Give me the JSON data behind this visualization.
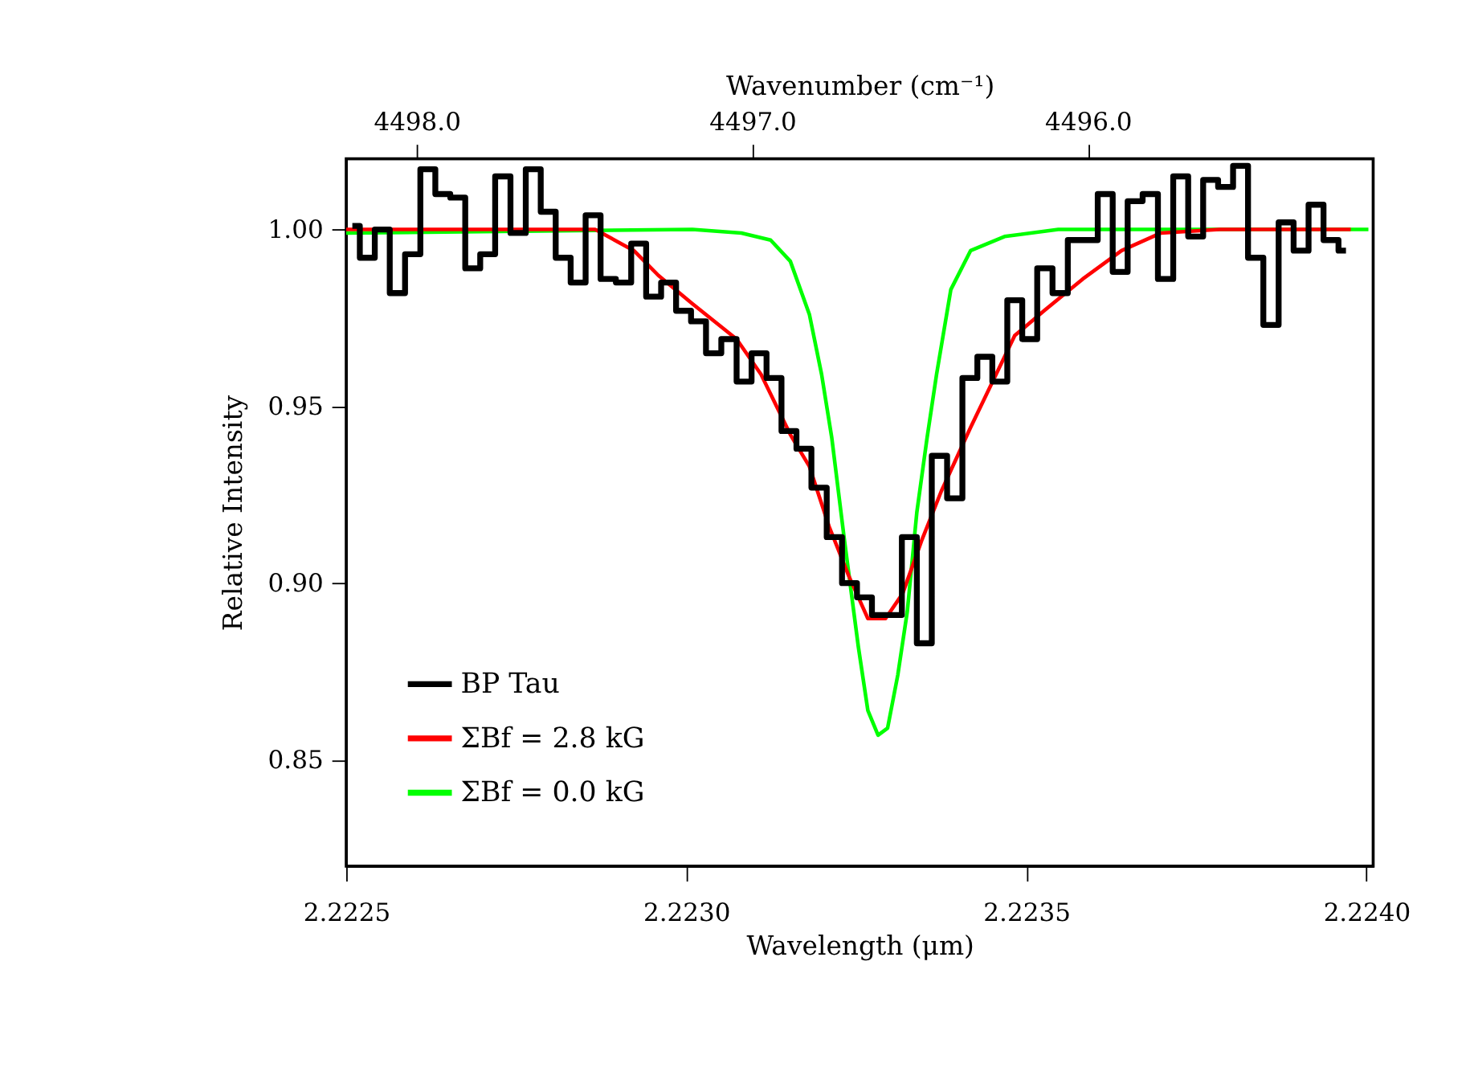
{
  "chart_data": {
    "type": "line",
    "xlabel": "Wavelength (μm)",
    "ylabel": "Relative Intensity",
    "x2label": "Wavenumber (cm⁻¹)",
    "xlim": [
      2.2225,
      2.22401
    ],
    "xticks": [
      {
        "value": 2.2225,
        "label": "2.2225"
      },
      {
        "value": 2.223,
        "label": "2.2230"
      },
      {
        "value": 2.2235,
        "label": "2.2235"
      },
      {
        "value": 2.224,
        "label": "2.2240"
      }
    ],
    "x2lim": [
      4498.21,
      4495.15
    ],
    "x2ticks": [
      {
        "value": 4498,
        "label": "4498.0"
      },
      {
        "value": 4497,
        "label": "4497.0"
      },
      {
        "value": 4496,
        "label": "4496.0"
      }
    ],
    "ylim": [
      0.82,
      1.02
    ],
    "yticks": [
      {
        "value": 0.85,
        "label": "0.85"
      },
      {
        "value": 0.9,
        "label": "0.90"
      },
      {
        "value": 0.95,
        "label": "0.95"
      },
      {
        "value": 1.0,
        "label": "1.00"
      }
    ],
    "grid": false,
    "legend": "bottom left",
    "series": [
      {
        "name": "BP Tau",
        "type": "step",
        "color": "#000000",
        "x": [
          2.222509,
          2.222531,
          2.222553,
          2.222575,
          2.222598,
          2.22262,
          2.222642,
          2.222664,
          2.222686,
          2.222708,
          2.22273,
          2.222753,
          2.222775,
          2.222797,
          2.222819,
          2.222841,
          2.222863,
          2.222885,
          2.222908,
          2.22293,
          2.222952,
          2.222974,
          2.222996,
          2.223018,
          2.22304,
          2.223063,
          2.223085,
          2.223107,
          2.223129,
          2.223151,
          2.223173,
          2.223195,
          2.223218,
          2.22324,
          2.223262,
          2.223284,
          2.223306,
          2.223328,
          2.22335,
          2.223372,
          2.223395,
          2.223417,
          2.223439,
          2.223461,
          2.223483,
          2.223505,
          2.223527,
          2.22355,
          2.223572,
          2.223594,
          2.223616,
          2.223638,
          2.22366,
          2.223682,
          2.223705,
          2.223727,
          2.223749,
          2.223771,
          2.223793,
          2.223815,
          2.223837,
          2.22386,
          2.223882,
          2.223904,
          2.223926,
          2.223948,
          2.22397
        ],
        "values": [
          1.001,
          0.992,
          1.0,
          0.982,
          0.993,
          1.017,
          1.01,
          1.009,
          0.989,
          0.993,
          1.015,
          0.999,
          1.017,
          1.005,
          0.992,
          0.985,
          1.004,
          0.986,
          0.985,
          0.996,
          0.981,
          0.985,
          0.977,
          0.974,
          0.965,
          0.969,
          0.957,
          0.965,
          0.958,
          0.943,
          0.938,
          0.927,
          0.913,
          0.9,
          0.896,
          0.891,
          0.891,
          0.913,
          0.883,
          0.936,
          0.924,
          0.958,
          0.964,
          0.957,
          0.98,
          0.969,
          0.989,
          0.982,
          0.997,
          0.997,
          1.01,
          0.988,
          1.008,
          1.01,
          0.986,
          1.015,
          0.998,
          1.014,
          1.012,
          1.018,
          0.992,
          0.973,
          1.002,
          0.994,
          1.007,
          0.997,
          0.994
        ]
      },
      {
        "name": "ΣBf = 2.8 kG",
        "color": "#ff0000",
        "x": [
          2.2225,
          2.222866,
          2.222923,
          2.222959,
          2.223009,
          2.223074,
          2.22311,
          2.223153,
          2.223181,
          2.22321,
          2.223239,
          2.223267,
          2.223293,
          2.223318,
          2.223346,
          2.223375,
          2.223418,
          2.223483,
          2.223526,
          2.223583,
          2.22364,
          2.223698,
          2.223784,
          2.223977
        ],
        "values": [
          1.0,
          1.0,
          0.994,
          0.987,
          0.979,
          0.969,
          0.959,
          0.942,
          0.933,
          0.916,
          0.902,
          0.89,
          0.89,
          0.897,
          0.912,
          0.926,
          0.944,
          0.97,
          0.977,
          0.986,
          0.994,
          0.999,
          1.0,
          1.0
        ]
      },
      {
        "name": "ΣBf = 0.0 kG",
        "color": "#00ff00",
        "x": [
          2.2225,
          2.223009,
          2.223081,
          2.223124,
          2.223153,
          2.223181,
          2.223199,
          2.223214,
          2.223232,
          2.223253,
          2.223267,
          2.223282,
          2.223296,
          2.223311,
          2.223325,
          2.223339,
          2.223354,
          2.223368,
          2.223389,
          2.223418,
          2.223468,
          2.223547,
          2.224003
        ],
        "values": [
          0.999,
          1.0,
          0.999,
          0.997,
          0.991,
          0.976,
          0.959,
          0.941,
          0.913,
          0.882,
          0.864,
          0.857,
          0.859,
          0.874,
          0.892,
          0.92,
          0.941,
          0.959,
          0.983,
          0.994,
          0.998,
          1.0,
          1.0
        ]
      }
    ]
  }
}
